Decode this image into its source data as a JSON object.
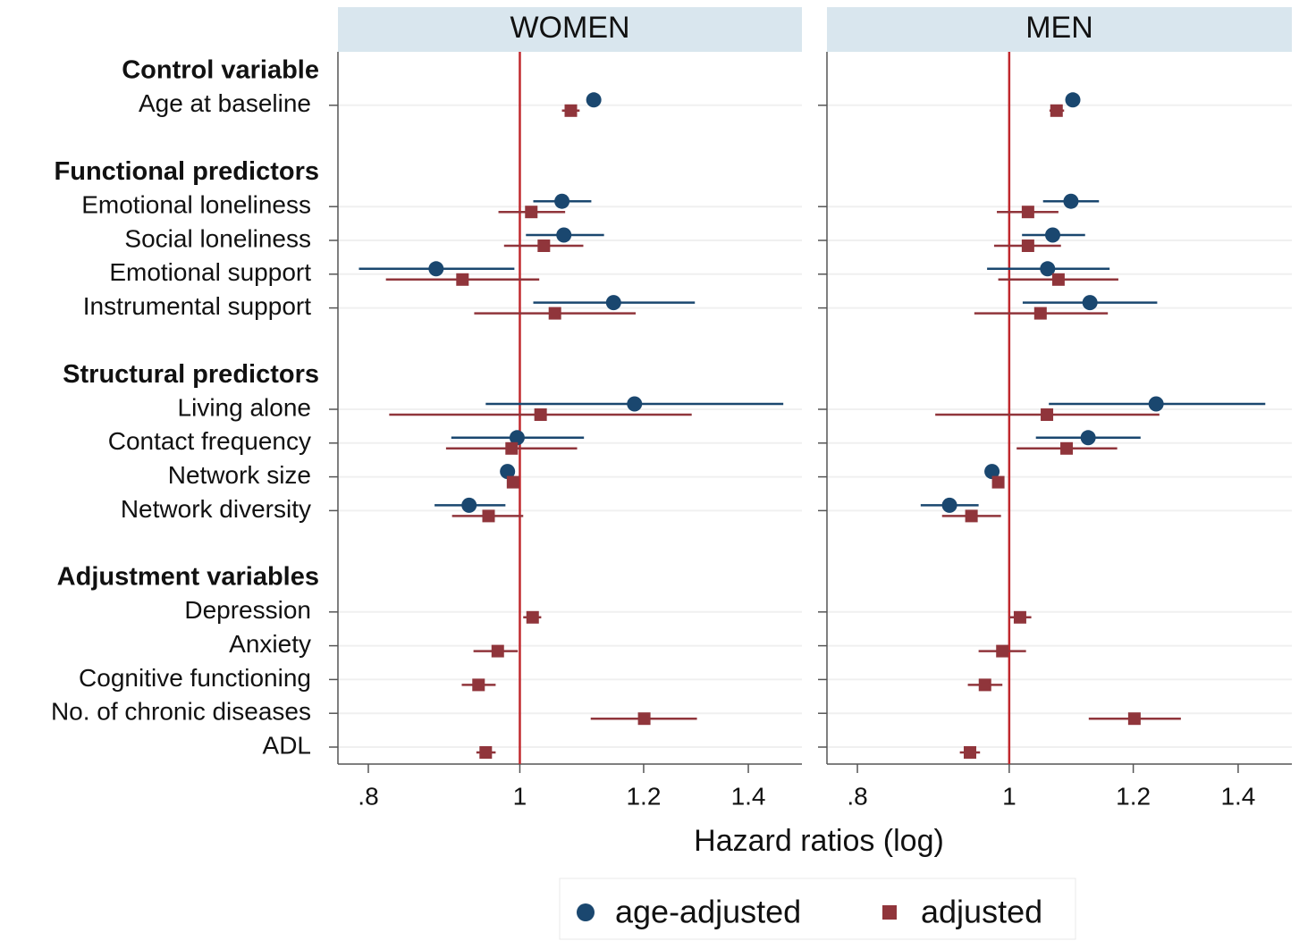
{
  "chart_data": {
    "type": "forest",
    "xlabel": "Hazard ratios (log)",
    "xscale": "log",
    "xlim": [
      0.765,
      1.515
    ],
    "xticks": [
      {
        "value": 0.8,
        "label": ".8"
      },
      1,
      1.2,
      1.4
    ],
    "reference_line": 1,
    "reference_color": "#c0282d",
    "series": [
      {
        "name": "age-adjusted",
        "color": "#1a476f",
        "marker": "circle"
      },
      {
        "name": "adjusted",
        "color": "#90353b",
        "marker": "square"
      }
    ],
    "groups": [
      {
        "name": "Control variable",
        "categories": [
          "Age at baseline"
        ]
      },
      {
        "name": "Functional predictors",
        "categories": [
          "Emotional loneliness",
          "Social loneliness",
          "Emotional support",
          "Instrumental support"
        ]
      },
      {
        "name": "Structural predictors",
        "categories": [
          "Living alone",
          "Contact frequency",
          "Network size",
          "Network diversity"
        ]
      },
      {
        "name": "Adjustment variables",
        "categories": [
          "Depression",
          "Anxiety",
          "Cognitive functioning",
          "No. of chronic diseases",
          "ADL"
        ]
      }
    ],
    "panels": [
      {
        "title": "WOMEN",
        "series": [
          {
            "values": [
              1.115,
              1.064,
              1.067,
              0.884,
              1.148,
              1.184,
              0.996,
              0.982,
              0.928,
              null,
              null,
              null,
              null,
              null
            ],
            "lower": [
              1.11,
              1.02,
              1.009,
              0.789,
              1.02,
              0.951,
              0.904,
              0.975,
              0.882,
              null,
              null,
              null,
              null,
              null
            ],
            "upper": [
              1.12,
              1.111,
              1.132,
              0.992,
              1.294,
              1.474,
              1.099,
              0.99,
              0.979,
              null,
              null,
              null,
              null,
              null
            ]
          },
          {
            "values": [
              1.078,
              1.017,
              1.036,
              0.919,
              1.053,
              1.031,
              0.988,
              0.99,
              0.955,
              1.019,
              0.968,
              0.941,
              1.201,
              0.951
            ],
            "lower": [
              1.064,
              0.969,
              0.977,
              0.821,
              0.935,
              0.825,
              0.897,
              0.984,
              0.905,
              1.005,
              0.934,
              0.918,
              1.11,
              0.938
            ],
            "upper": [
              1.092,
              1.069,
              1.098,
              1.029,
              1.186,
              1.288,
              1.088,
              0.996,
              1.005,
              1.032,
              0.997,
              0.965,
              1.298,
              0.965
            ]
          }
        ]
      },
      {
        "title": "MEN",
        "series": [
          {
            "values": [
              1.098,
              1.095,
              1.066,
              1.058,
              1.126,
              1.241,
              1.123,
              0.975,
              0.916,
              null,
              null,
              null,
              null,
              null
            ],
            "lower": [
              1.093,
              1.051,
              1.019,
              0.968,
              1.02,
              1.06,
              1.04,
              0.97,
              0.878,
              null,
              null,
              null,
              null,
              null
            ],
            "upper": [
              1.103,
              1.141,
              1.118,
              1.159,
              1.243,
              1.457,
              1.213,
              0.98,
              0.956,
              null,
              null,
              null,
              null,
              null
            ]
          },
          {
            "values": [
              1.072,
              1.028,
              1.028,
              1.075,
              1.047,
              1.057,
              1.088,
              0.984,
              0.946,
              1.016,
              0.99,
              0.965,
              1.202,
              0.944
            ],
            "lower": [
              1.061,
              0.982,
              0.978,
              0.984,
              0.95,
              0.897,
              1.011,
              0.979,
              0.906,
              1.0,
              0.956,
              0.941,
              1.124,
              0.93
            ],
            "upper": [
              1.084,
              1.075,
              1.079,
              1.174,
              1.156,
              1.247,
              1.172,
              0.989,
              0.988,
              1.033,
              1.025,
              0.99,
              1.287,
              0.958
            ]
          }
        ]
      }
    ]
  }
}
